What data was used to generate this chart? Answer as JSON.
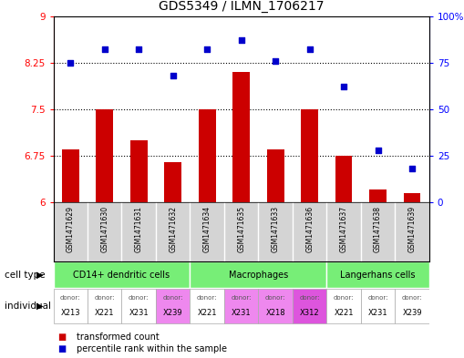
{
  "title": "GDS5349 / ILMN_1706217",
  "samples": [
    "GSM1471629",
    "GSM1471630",
    "GSM1471631",
    "GSM1471632",
    "GSM1471634",
    "GSM1471635",
    "GSM1471633",
    "GSM1471636",
    "GSM1471637",
    "GSM1471638",
    "GSM1471639"
  ],
  "transformed_count": [
    6.85,
    7.5,
    7.0,
    6.65,
    7.5,
    8.1,
    6.85,
    7.5,
    6.75,
    6.2,
    6.15
  ],
  "percentile_rank": [
    75,
    82,
    82,
    68,
    82,
    87,
    76,
    82,
    62,
    28,
    18
  ],
  "ylim_left": [
    6,
    9
  ],
  "ylim_right": [
    0,
    100
  ],
  "yticks_left": [
    6,
    6.75,
    7.5,
    8.25,
    9
  ],
  "yticks_right": [
    0,
    25,
    50,
    75,
    100
  ],
  "ytick_labels_left": [
    "6",
    "6.75",
    "7.5",
    "8.25",
    "9"
  ],
  "ytick_labels_right": [
    "0",
    "25",
    "50",
    "75",
    "100%"
  ],
  "hlines": [
    6.75,
    7.5,
    8.25
  ],
  "bar_color": "#cc0000",
  "dot_color": "#0000cc",
  "cell_types": [
    {
      "label": "CD14+ dendritic cells",
      "start": 0,
      "end": 4
    },
    {
      "label": "Macrophages",
      "start": 4,
      "end": 8
    },
    {
      "label": "Langerhans cells",
      "start": 8,
      "end": 11
    }
  ],
  "cell_type_color": "#77ee77",
  "individuals": [
    {
      "donor": "X213",
      "col": 0,
      "color": "#ffffff"
    },
    {
      "donor": "X221",
      "col": 1,
      "color": "#ffffff"
    },
    {
      "donor": "X231",
      "col": 2,
      "color": "#ffffff"
    },
    {
      "donor": "X239",
      "col": 3,
      "color": "#ee88ee"
    },
    {
      "donor": "X221",
      "col": 4,
      "color": "#ffffff"
    },
    {
      "donor": "X231",
      "col": 5,
      "color": "#ee88ee"
    },
    {
      "donor": "X218",
      "col": 6,
      "color": "#ee88ee"
    },
    {
      "donor": "X312",
      "col": 7,
      "color": "#dd55dd"
    },
    {
      "donor": "X221",
      "col": 8,
      "color": "#ffffff"
    },
    {
      "donor": "X231",
      "col": 9,
      "color": "#ffffff"
    },
    {
      "donor": "X239",
      "col": 10,
      "color": "#ffffff"
    }
  ],
  "individual_row_color": "#ffffff",
  "cell_type_label": "cell type",
  "individual_label": "individual",
  "legend_bar": "transformed count",
  "legend_dot": "percentile rank within the sample",
  "bar_width": 0.5
}
